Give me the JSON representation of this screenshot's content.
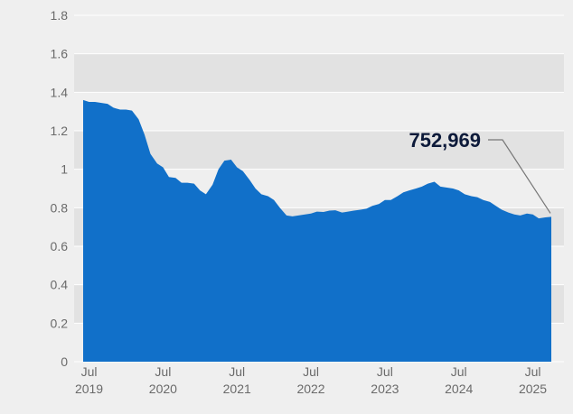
{
  "chart_data": {
    "type": "area",
    "title": "",
    "xlabel": "",
    "ylabel": "",
    "ylim": [
      0,
      1.8
    ],
    "y_ticks": [
      "0",
      "0.2",
      "0.4",
      "0.6",
      "0.8",
      "1",
      "1.2",
      "1.4",
      "1.6",
      "1.8"
    ],
    "x_ticks": [
      {
        "month": "Jul",
        "year": "2019",
        "x": 2019.5
      },
      {
        "month": "Jul",
        "year": "2020",
        "x": 2020.5
      },
      {
        "month": "Jul",
        "year": "2021",
        "x": 2021.5
      },
      {
        "month": "Jul",
        "year": "2022",
        "x": 2022.5
      },
      {
        "month": "Jul",
        "year": "2023",
        "x": 2023.5
      },
      {
        "month": "Jul",
        "year": "2024",
        "x": 2024.5
      },
      {
        "month": "Jul",
        "year": "2025",
        "x": 2025.5
      }
    ],
    "grid": true,
    "band_fill": true,
    "fill_color": "#1170c9",
    "background_color": "#efefef",
    "band_color": "#e2e2e2",
    "callout": {
      "label": "752,969",
      "x": 2025.75,
      "y": 0.753
    },
    "x": [
      2019.42,
      2019.5,
      2019.58,
      2019.67,
      2019.75,
      2019.83,
      2019.92,
      2020.0,
      2020.08,
      2020.17,
      2020.25,
      2020.33,
      2020.42,
      2020.5,
      2020.58,
      2020.67,
      2020.75,
      2020.83,
      2020.92,
      2021.0,
      2021.08,
      2021.17,
      2021.25,
      2021.33,
      2021.42,
      2021.5,
      2021.58,
      2021.67,
      2021.75,
      2021.83,
      2021.92,
      2022.0,
      2022.08,
      2022.17,
      2022.25,
      2022.33,
      2022.42,
      2022.5,
      2022.58,
      2022.67,
      2022.75,
      2022.83,
      2022.92,
      2023.0,
      2023.08,
      2023.17,
      2023.25,
      2023.33,
      2023.42,
      2023.5,
      2023.58,
      2023.67,
      2023.75,
      2023.83,
      2023.92,
      2024.0,
      2024.08,
      2024.17,
      2024.25,
      2024.33,
      2024.42,
      2024.5,
      2024.58,
      2024.67,
      2024.75,
      2024.83,
      2024.92,
      2025.0,
      2025.08,
      2025.17,
      2025.25,
      2025.33,
      2025.42,
      2025.5,
      2025.58,
      2025.67,
      2025.75
    ],
    "values": [
      1.36,
      1.35,
      1.35,
      1.345,
      1.34,
      1.32,
      1.31,
      1.31,
      1.305,
      1.26,
      1.18,
      1.08,
      1.03,
      1.01,
      0.96,
      0.955,
      0.93,
      0.93,
      0.925,
      0.89,
      0.87,
      0.92,
      1.0,
      1.045,
      1.05,
      1.01,
      0.99,
      0.945,
      0.9,
      0.87,
      0.86,
      0.84,
      0.8,
      0.76,
      0.755,
      0.76,
      0.765,
      0.77,
      0.78,
      0.778,
      0.785,
      0.787,
      0.775,
      0.78,
      0.785,
      0.79,
      0.795,
      0.81,
      0.82,
      0.84,
      0.84,
      0.86,
      0.88,
      0.89,
      0.9,
      0.91,
      0.925,
      0.935,
      0.91,
      0.905,
      0.9,
      0.89,
      0.87,
      0.86,
      0.855,
      0.84,
      0.83,
      0.81,
      0.79,
      0.775,
      0.765,
      0.76,
      0.77,
      0.765,
      0.745,
      0.75,
      0.753
    ]
  }
}
